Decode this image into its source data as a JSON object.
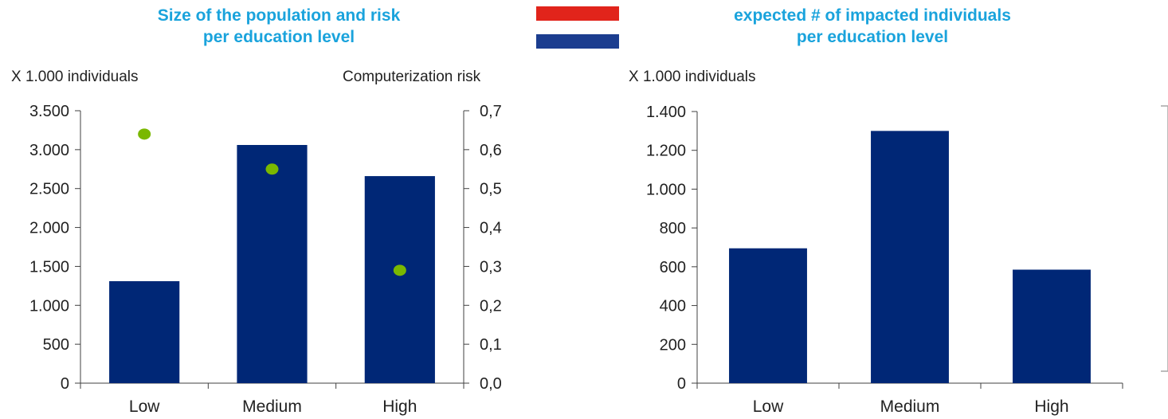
{
  "colors": {
    "title": "#1aa3dc",
    "bar": "#002776",
    "dot": "#7ab800",
    "axis": "#404040",
    "flag_red": "#e1241b",
    "flag_white": "#ffffff",
    "flag_blue": "#1b3d8f",
    "bracket": "#a6a6a6"
  },
  "flag": {
    "icon": "netherlands-flag-icon"
  },
  "chart_data": [
    {
      "type": "bar",
      "title_line1": "Size of the population and risk",
      "title_line2": "per education level",
      "ylabel": "X 1.000 individuals",
      "y2label": "Computerization risk",
      "categories": [
        "Low",
        "Medium",
        "High"
      ],
      "series": [
        {
          "values": [
            1310,
            3060,
            2660
          ],
          "axis": "left",
          "type": "bar"
        },
        {
          "values": [
            0.64,
            0.55,
            0.29
          ],
          "axis": "right",
          "type": "scatter"
        }
      ],
      "ylim": [
        0,
        3500
      ],
      "y_ticks": [
        0,
        500,
        1000,
        1500,
        2000,
        2500,
        3000,
        3500
      ],
      "y_tick_labels": [
        "0",
        "500",
        "1.000",
        "1.500",
        "2.000",
        "2.500",
        "3.000",
        "3.500"
      ],
      "y2lim": [
        0,
        0.7
      ],
      "y2_ticks": [
        0,
        0.1,
        0.2,
        0.3,
        0.4,
        0.5,
        0.6,
        0.7
      ],
      "y2_tick_labels": [
        "0,0",
        "0,1",
        "0,2",
        "0,3",
        "0,4",
        "0,5",
        "0,6",
        "0,7"
      ],
      "grid": false,
      "legend": "none"
    },
    {
      "type": "bar",
      "title_line1": "expected # of impacted individuals",
      "title_line2": "per education level",
      "ylabel": "X 1.000 individuals",
      "categories": [
        "Low",
        "Medium",
        "High"
      ],
      "values": [
        695,
        1300,
        585
      ],
      "ylim": [
        0,
        1400
      ],
      "y_ticks": [
        0,
        200,
        400,
        600,
        800,
        1000,
        1200,
        1400
      ],
      "y_tick_labels": [
        "0",
        "200",
        "400",
        "600",
        "800",
        "1.000",
        "1.200",
        "1.400"
      ],
      "grid": false,
      "legend": "none"
    }
  ]
}
